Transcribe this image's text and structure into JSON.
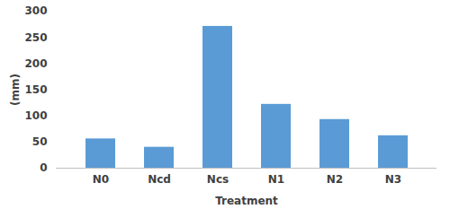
{
  "chart_data": {
    "type": "bar",
    "categories": [
      "N0",
      "Ncd",
      "Ncs",
      "N1",
      "N2",
      "N3"
    ],
    "values": [
      56,
      40,
      271,
      122,
      93,
      62
    ],
    "color": "#5b9bd5",
    "x_label": "Treatment",
    "y_label": "(mm)",
    "ylim": [
      0,
      300
    ],
    "yticks": [
      0,
      50,
      100,
      150,
      200,
      250,
      300
    ],
    "grid": false
  }
}
